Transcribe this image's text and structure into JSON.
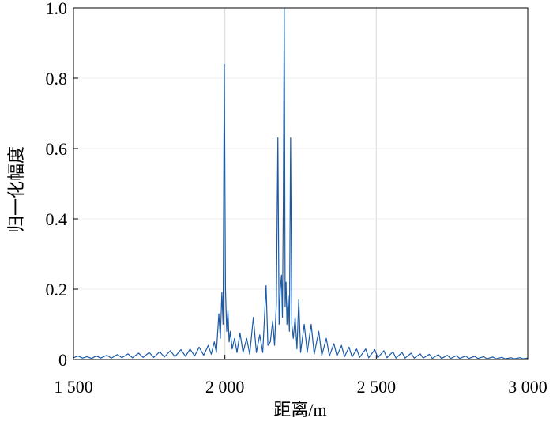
{
  "chart_data": {
    "type": "line",
    "x_label": "距离/m",
    "y_label": "归一化幅度",
    "x": [
      1500,
      1515,
      1530,
      1545,
      1560,
      1575,
      1590,
      1610,
      1625,
      1645,
      1660,
      1680,
      1695,
      1715,
      1730,
      1750,
      1765,
      1785,
      1800,
      1820,
      1835,
      1855,
      1870,
      1885,
      1900,
      1915,
      1930,
      1945,
      1955,
      1965,
      1972,
      1980,
      1985,
      1990,
      1994,
      1998,
      2002,
      2006,
      2010,
      2014,
      2018,
      2024,
      2032,
      2040,
      2050,
      2060,
      2072,
      2082,
      2094,
      2104,
      2115,
      2125,
      2136,
      2142,
      2150,
      2158,
      2164,
      2170,
      2175,
      2179,
      2183,
      2187,
      2190,
      2193,
      2196,
      2199,
      2202,
      2205,
      2209,
      2213,
      2217,
      2221,
      2226,
      2232,
      2238,
      2244,
      2250,
      2262,
      2272,
      2285,
      2295,
      2310,
      2320,
      2335,
      2345,
      2360,
      2370,
      2385,
      2395,
      2410,
      2420,
      2435,
      2445,
      2465,
      2475,
      2495,
      2505,
      2525,
      2535,
      2555,
      2565,
      2585,
      2595,
      2615,
      2625,
      2645,
      2655,
      2675,
      2685,
      2705,
      2715,
      2735,
      2745,
      2765,
      2775,
      2795,
      2805,
      2825,
      2835,
      2855,
      2865,
      2885,
      2895,
      2915,
      2925,
      2945,
      2955,
      2975,
      2985,
      3000
    ],
    "series": [
      {
        "color": "#1a5aa8",
        "values": [
          0.005,
          0.01,
          0.004,
          0.008,
          0.003,
          0.01,
          0.004,
          0.012,
          0.004,
          0.014,
          0.005,
          0.016,
          0.005,
          0.018,
          0.006,
          0.02,
          0.006,
          0.022,
          0.007,
          0.025,
          0.008,
          0.028,
          0.009,
          0.03,
          0.01,
          0.035,
          0.012,
          0.04,
          0.015,
          0.05,
          0.02,
          0.13,
          0.06,
          0.19,
          0.1,
          0.84,
          0.2,
          0.08,
          0.14,
          0.05,
          0.08,
          0.03,
          0.06,
          0.02,
          0.075,
          0.02,
          0.06,
          0.015,
          0.12,
          0.02,
          0.07,
          0.02,
          0.21,
          0.04,
          0.05,
          0.11,
          0.04,
          0.16,
          0.63,
          0.1,
          0.2,
          0.24,
          0.12,
          0.45,
          1.0,
          0.15,
          0.22,
          0.1,
          0.18,
          0.08,
          0.63,
          0.1,
          0.06,
          0.12,
          0.03,
          0.17,
          0.02,
          0.1,
          0.02,
          0.1,
          0.015,
          0.08,
          0.012,
          0.06,
          0.01,
          0.045,
          0.01,
          0.04,
          0.008,
          0.035,
          0.007,
          0.03,
          0.006,
          0.03,
          0.005,
          0.028,
          0.005,
          0.025,
          0.005,
          0.022,
          0.004,
          0.02,
          0.004,
          0.018,
          0.004,
          0.016,
          0.004,
          0.015,
          0.003,
          0.014,
          0.003,
          0.012,
          0.003,
          0.011,
          0.003,
          0.01,
          0.003,
          0.009,
          0.003,
          0.008,
          0.002,
          0.007,
          0.002,
          0.006,
          0.002,
          0.005,
          0.002,
          0.005,
          0.002,
          0.004
        ]
      }
    ],
    "xlim": [
      1500,
      3000
    ],
    "xticks": [
      {
        "value": 1500,
        "label": "1 500"
      },
      {
        "value": 2000,
        "label": "2 000"
      },
      {
        "value": 2500,
        "label": "2 500"
      },
      {
        "value": 3000,
        "label": "3 000"
      }
    ],
    "ylim": [
      0,
      1
    ],
    "yticks": [
      0,
      0.2,
      0.4,
      0.6,
      0.8,
      {
        "value": 1,
        "label": "1.0"
      }
    ],
    "grid": true
  }
}
